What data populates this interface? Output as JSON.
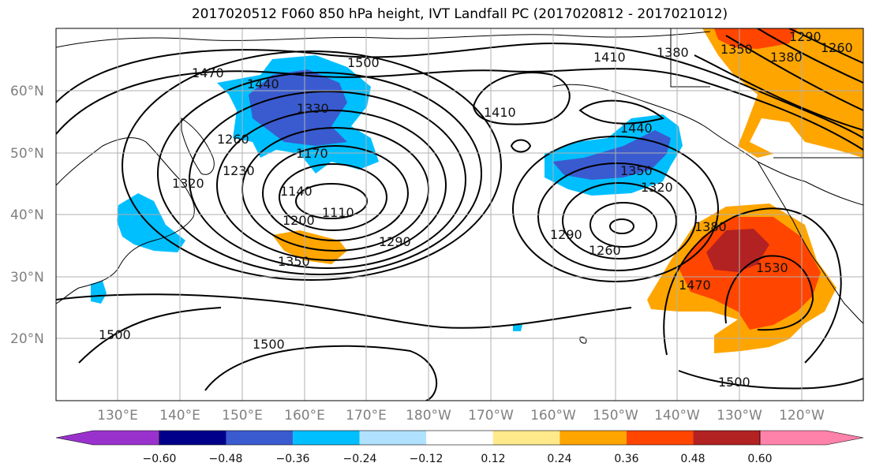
{
  "title": "2017020512 F060 850 hPa height, IVT Landfall PC (2017020812 - 2017021012)",
  "lat_ticks": [
    "60°N",
    "50°N",
    "40°N",
    "30°N",
    "20°N"
  ],
  "lon_ticks": [
    "130°E",
    "140°E",
    "150°E",
    "160°E",
    "170°E",
    "180°W",
    "170°W",
    "160°W",
    "150°W",
    "140°W",
    "130°W",
    "120°W"
  ],
  "contour_labels": [
    "1470",
    "1440",
    "1500",
    "1410",
    "1380",
    "1350",
    "1290",
    "1260",
    "1410",
    "1380",
    "1330",
    "1260",
    "1230",
    "1170",
    "1320",
    "1140",
    "1200",
    "1110",
    "1290",
    "1350",
    "1440",
    "1350",
    "1320",
    "1290",
    "1260",
    "1380",
    "1470",
    "1530",
    "1500",
    "1500",
    "1500"
  ],
  "colorbar": {
    "ticks": [
      "−0.60",
      "−0.48",
      "−0.36",
      "−0.24",
      "−0.12",
      "0.12",
      "0.24",
      "0.36",
      "0.48",
      "0.60"
    ],
    "colors": [
      "#9932cc",
      "#00008b",
      "#3a5bd0",
      "#00bfff",
      "#b0e2ff",
      "#ffffff",
      "#ffe98a",
      "#ffa500",
      "#ff4500",
      "#b22222",
      "#ff82ab"
    ]
  },
  "colors": {
    "neg_strong": "#3a5bd0",
    "neg_mid": "#00bfff",
    "pos_mid": "#ffa500",
    "pos_strong": "#ff4500",
    "pos_max": "#b22222"
  }
}
